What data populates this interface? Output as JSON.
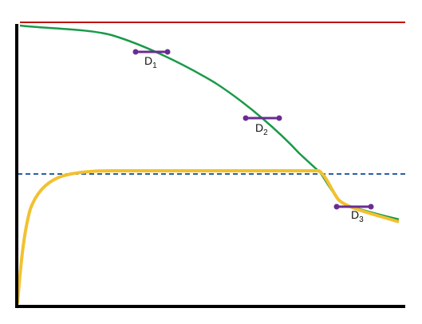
{
  "labels": [
    {
      "letter": "D",
      "subscript": "1"
    },
    {
      "letter": "D",
      "subscript": "2"
    },
    {
      "letter": "D",
      "subscript": "3"
    }
  ]
}
